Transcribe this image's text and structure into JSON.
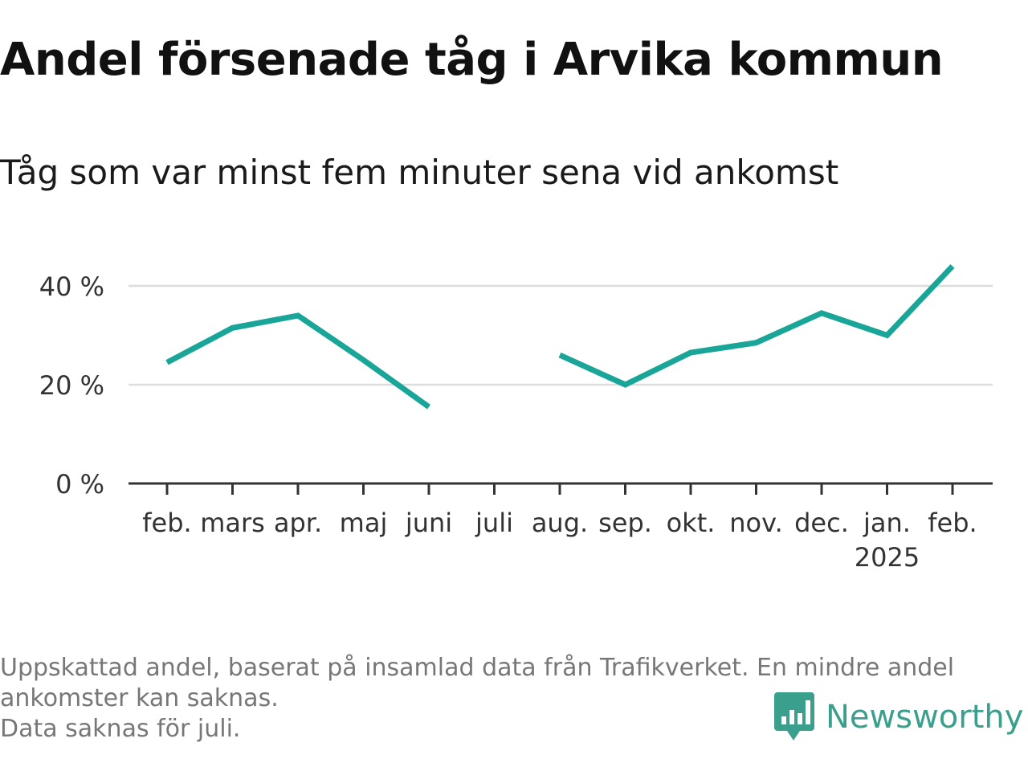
{
  "title": "Andel försenade tåg i Arvika kommun",
  "subtitle": "Tåg som var minst fem minuter sena vid ankomst",
  "chart_data": {
    "type": "line",
    "categories": [
      "feb.",
      "mars",
      "apr.",
      "maj",
      "juni",
      "juli",
      "aug.",
      "sep.",
      "okt.",
      "nov.",
      "dec.",
      "jan.",
      "feb."
    ],
    "category_sublabels": [
      "",
      "",
      "",
      "",
      "",
      "",
      "",
      "",
      "",
      "",
      "",
      "2025",
      ""
    ],
    "series": [
      {
        "values": [
          24.5,
          31.5,
          34,
          25,
          15.5,
          null,
          26,
          20,
          26.5,
          28.5,
          34.5,
          30,
          44
        ],
        "color": "#19a598"
      }
    ],
    "y_ticks": [
      0,
      20,
      40
    ],
    "y_tick_labels": [
      "0 %",
      "20 %",
      "40 %"
    ],
    "ylim": [
      0,
      46
    ],
    "grid": true,
    "xlabel": "",
    "ylabel": ""
  },
  "footnotes": [
    "Uppskattad andel, baserat på insamlad data från Trafikverket. En mindre andel",
    "ankomster kan saknas.",
    "Data saknas för juli."
  ],
  "brand": {
    "name": "Newsworthy",
    "color": "#3a9f8c"
  }
}
